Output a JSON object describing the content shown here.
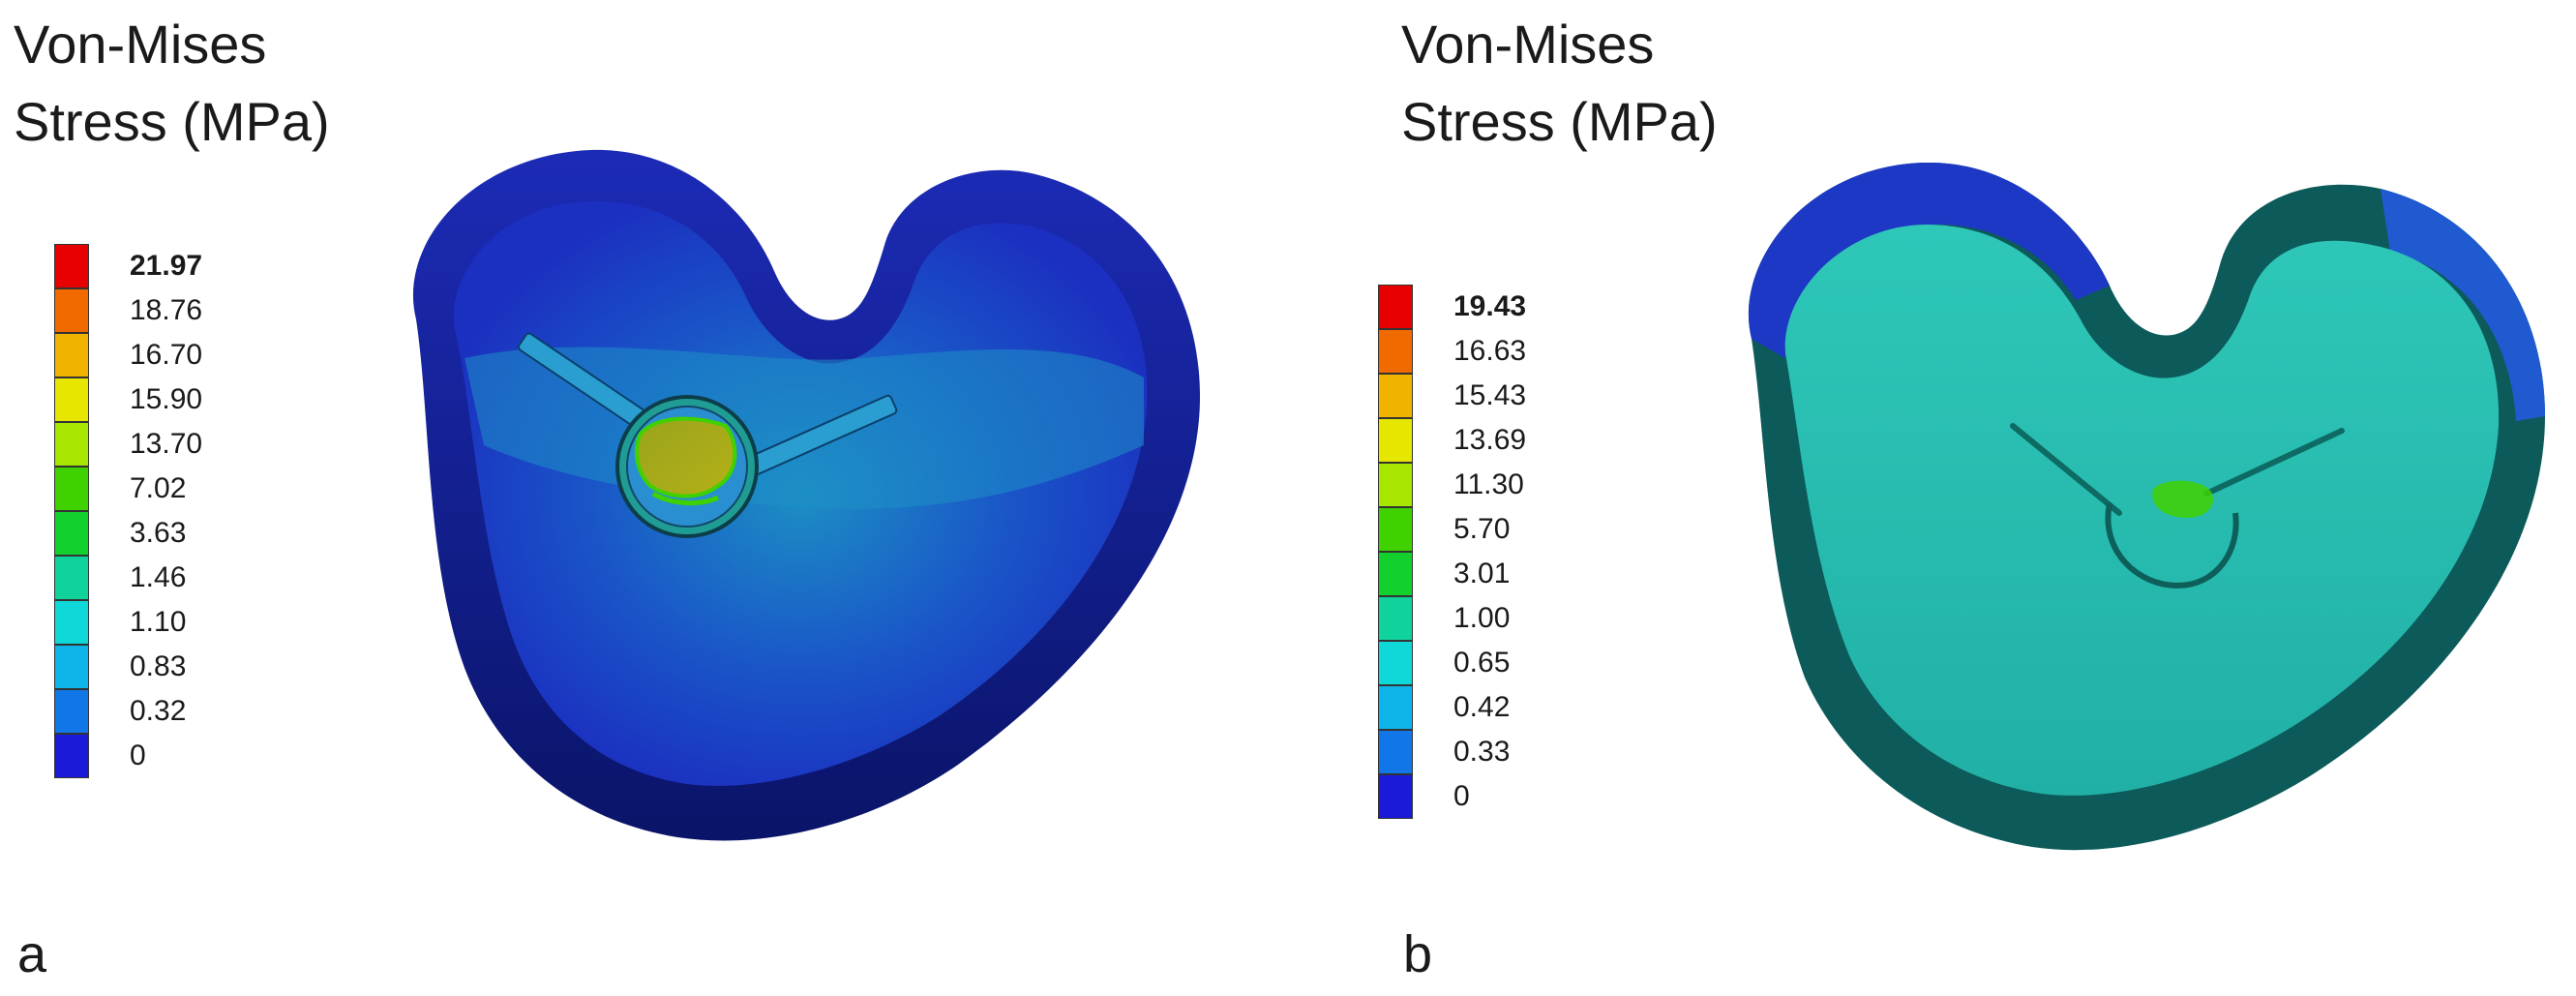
{
  "figure": {
    "panels": [
      {
        "id": "a",
        "label": "a",
        "title_line1": "Von-Mises",
        "title_line2": "Stress (MPa)",
        "legend_values": [
          "21.97",
          "18.76",
          "16.70",
          "15.90",
          "13.70",
          "7.02",
          "3.63",
          "1.46",
          "1.10",
          "0.83",
          "0.32",
          "0"
        ]
      },
      {
        "id": "b",
        "label": "b",
        "title_line1": "Von-Mises",
        "title_line2": "Stress (MPa)",
        "legend_values": [
          "19.43",
          "16.63",
          "15.43",
          "13.69",
          "11.30",
          "5.70",
          "3.01",
          "1.00",
          "0.65",
          "0.42",
          "0.33",
          "0"
        ]
      }
    ],
    "legend_colors": [
      "#e60000",
      "#f06a00",
      "#f0b400",
      "#e6e600",
      "#a6e600",
      "#3fd100",
      "#12d12d",
      "#10d39b",
      "#0fd8d8",
      "#0fb5e8",
      "#1176e8",
      "#1a1ad8"
    ]
  }
}
